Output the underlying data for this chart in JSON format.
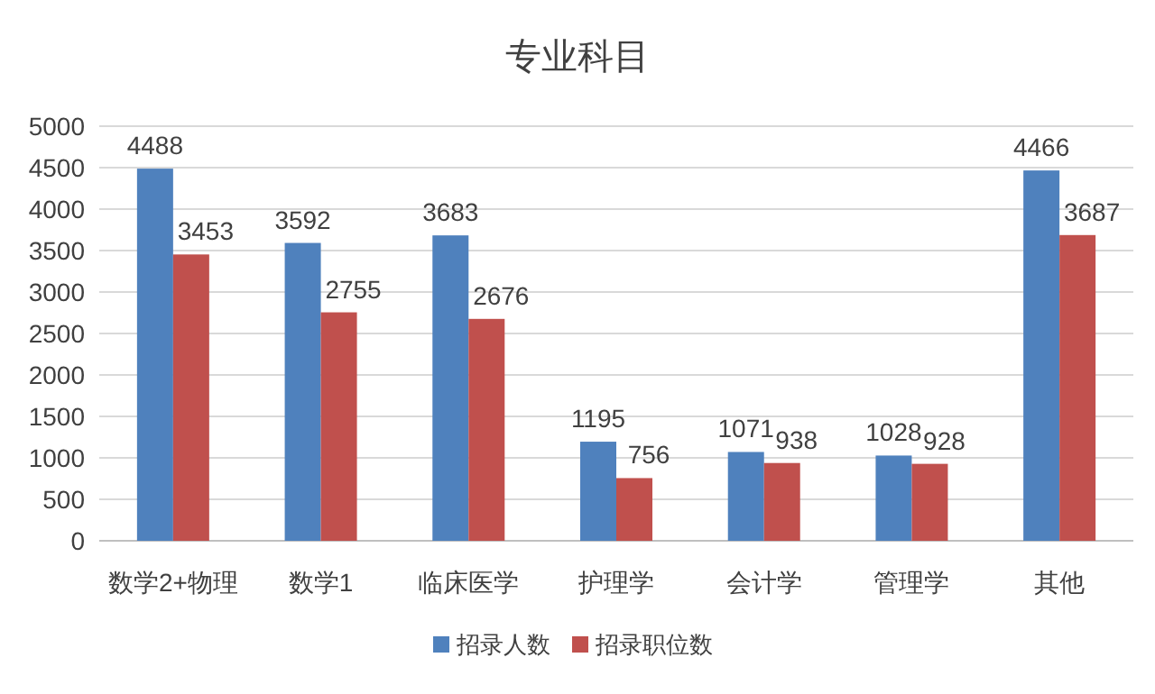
{
  "chart_data": {
    "type": "bar",
    "title": "专业科目",
    "categories": [
      "数学2+物理",
      "数学1",
      "临床医学",
      "护理学",
      "会计学",
      "管理学",
      "其他"
    ],
    "series": [
      {
        "name": "招录人数",
        "color": "#4f81bd",
        "values": [
          4488,
          3592,
          3683,
          1195,
          1071,
          1028,
          4466
        ]
      },
      {
        "name": "招录职位数",
        "color": "#c0504d",
        "values": [
          3453,
          2755,
          2676,
          756,
          938,
          928,
          3687
        ]
      }
    ],
    "ylim": [
      0,
      5000
    ],
    "yticks": [
      0,
      500,
      1000,
      1500,
      2000,
      2500,
      3000,
      3500,
      4000,
      4500,
      5000
    ],
    "grid": "y",
    "legend": "bottom",
    "data_labels": true
  }
}
